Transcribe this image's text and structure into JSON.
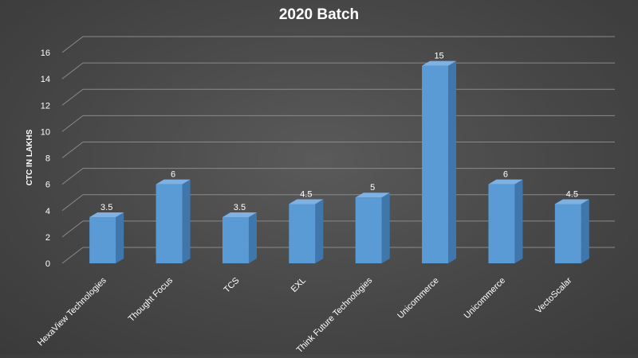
{
  "chart_data": {
    "type": "bar",
    "title": "2020 Batch",
    "xlabel": "",
    "ylabel": "CTC IN LAKHS",
    "categories": [
      "HexaView Technologies",
      "Thought Focus",
      "TCS",
      "EXL",
      "Think Future Technologies",
      "Unicommerce",
      "Unicommerce",
      "VectoScalar"
    ],
    "values": [
      3.5,
      6,
      3.5,
      4.5,
      5,
      15,
      6,
      4.5
    ],
    "data_labels": [
      "3.5",
      "6",
      "3.5",
      "4.5",
      "5",
      "15",
      "6",
      "4.5"
    ],
    "ylim": [
      0,
      16
    ],
    "yticks": [
      0,
      2,
      4,
      6,
      8,
      10,
      12,
      14,
      16
    ],
    "grid": true,
    "legend": "none",
    "style": "3d-column",
    "colors": {
      "bar": "#5b9bd5",
      "bar_side": "#3f77ad",
      "bar_top": "#7fb2e3",
      "grid": "#8a8a8a",
      "background": "#474747",
      "text": "#ffffff"
    }
  }
}
